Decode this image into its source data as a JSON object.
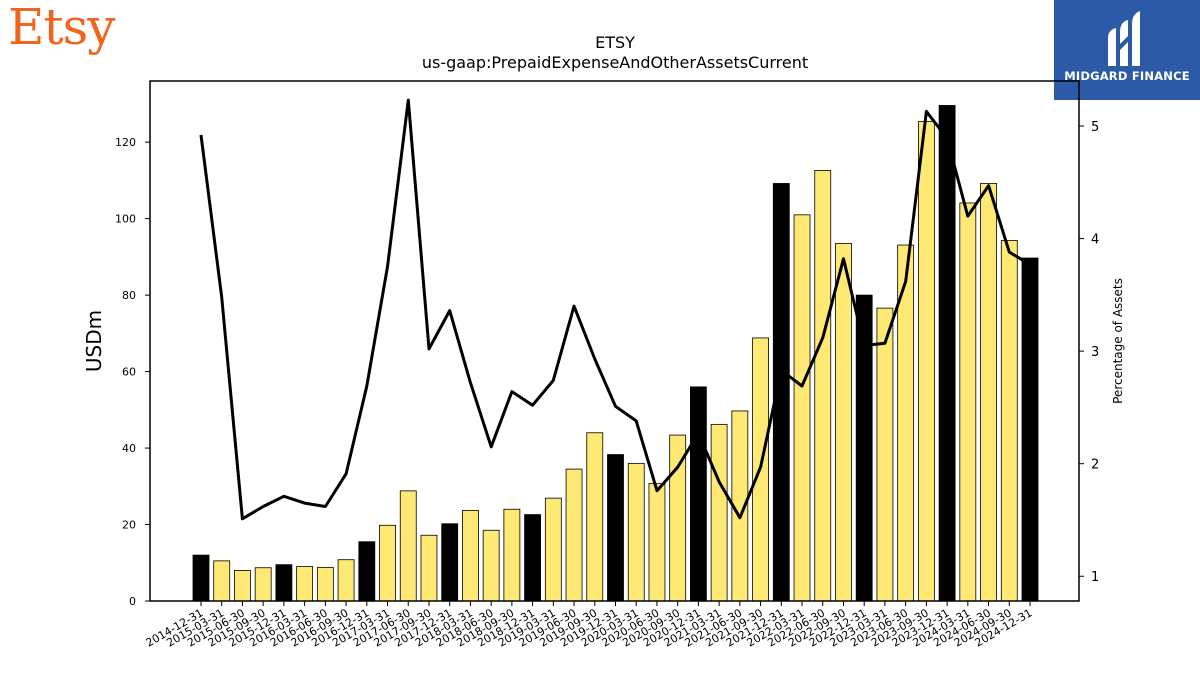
{
  "branding": {
    "left_logo_text": "Etsy",
    "right_logo_text": "MIDGARD FINANCE",
    "etsy_color": "#f1641e",
    "midgard_bg": "#2d5aa7"
  },
  "chart_data": {
    "type": "bar",
    "title": "ETSY",
    "subtitle": "us-gaap:PrepaidExpenseAndOtherAssetsCurrent",
    "ylabel": "USDm",
    "ylabel_right": "Percentage of Assets",
    "ylim": [
      0,
      136
    ],
    "ylim_right": [
      0.78,
      5.4
    ],
    "yticks": [
      0,
      20,
      40,
      60,
      80,
      100,
      120
    ],
    "yticks_right": [
      1,
      2,
      3,
      4,
      5
    ],
    "categories": [
      "2014-12-31",
      "2015-03-31",
      "2015-06-30",
      "2015-09-30",
      "2015-12-31",
      "2016-03-31",
      "2016-06-30",
      "2016-09-30",
      "2016-12-31",
      "2017-03-31",
      "2017-06-30",
      "2017-09-30",
      "2017-12-31",
      "2018-03-31",
      "2018-06-30",
      "2018-09-30",
      "2018-12-31",
      "2019-03-31",
      "2019-06-30",
      "2019-09-30",
      "2019-12-31",
      "2020-03-31",
      "2020-06-30",
      "2020-09-30",
      "2020-12-31",
      "2021-03-31",
      "2021-06-30",
      "2021-09-30",
      "2021-12-31",
      "2022-03-31",
      "2022-06-30",
      "2022-09-30",
      "2022-12-31",
      "2023-03-31",
      "2023-06-30",
      "2023-09-30",
      "2023-12-31",
      "2024-03-31",
      "2024-06-30",
      "2024-09-30",
      "2024-12-31"
    ],
    "series": [
      {
        "kind": "bar",
        "values": [
          12,
          10.5,
          8,
          8.7,
          9.5,
          9,
          8.8,
          10.8,
          15.5,
          19.8,
          28.8,
          17.2,
          20.2,
          23.7,
          18.5,
          24,
          22.6,
          26.9,
          34.5,
          44,
          38.3,
          36,
          30.7,
          43.4,
          56,
          46.2,
          49.7,
          68.8,
          109.2,
          101,
          112.6,
          93.5,
          80,
          76.6,
          93.1,
          125.4,
          129.6,
          104.1,
          109.2,
          94.3,
          89.7
        ]
      },
      {
        "kind": "line",
        "axis": "right",
        "values": [
          4.92,
          3.48,
          1.51,
          1.62,
          1.71,
          1.65,
          1.62,
          1.91,
          2.69,
          3.75,
          5.23,
          3.02,
          3.36,
          2.72,
          2.15,
          2.64,
          2.52,
          2.74,
          3.4,
          2.93,
          2.51,
          2.38,
          1.76,
          1.97,
          2.27,
          1.84,
          1.52,
          1.97,
          2.83,
          2.69,
          3.12,
          3.82,
          3.05,
          3.07,
          3.62,
          5.13,
          4.89,
          4.2,
          4.47,
          3.88,
          3.77
        ]
      }
    ],
    "year_end_bar_color": "#000000",
    "quarter_bar_color": "#fde973",
    "line_color": "#000000",
    "grid": false
  }
}
